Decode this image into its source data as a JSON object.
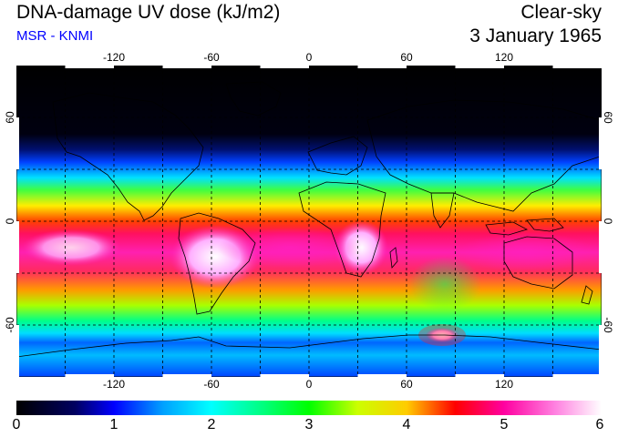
{
  "header": {
    "title": "DNA-damage UV dose (kJ/m2)",
    "source": "MSR - KNMI",
    "condition": "Clear-sky",
    "date": "3 January 1965"
  },
  "map": {
    "projection": "equirectangular",
    "lon_range": [
      -180,
      180
    ],
    "lat_range": [
      -90,
      90
    ],
    "lon_ticks": [
      "-120",
      "-60",
      "0",
      "60",
      "120"
    ],
    "lat_ticks": [
      "60",
      "0",
      "-60"
    ],
    "grid": "dashed 30 degree graticule",
    "frame": "black and white alternating border"
  },
  "colorbar": {
    "min": 0,
    "max": 6,
    "tick_labels": [
      "0",
      "1",
      "2",
      "3",
      "4",
      "5",
      "6"
    ],
    "colors": [
      "#000000",
      "#0000ff",
      "#00ffff",
      "#00ff00",
      "#ffff00",
      "#ff0000",
      "#ff00aa",
      "#ffffff"
    ]
  }
}
